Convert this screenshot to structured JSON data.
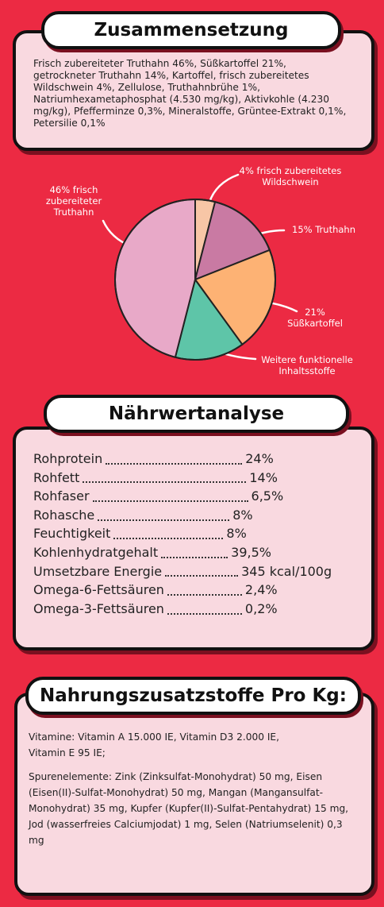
{
  "composition": {
    "title": "Zusammensetzung",
    "text": "Frisch zubereiteter Truthahn 46%, Süßkartoffel 21%, getrockneter Truthahn 14%, Kartoffel, frisch zubereitetes Wildschwein 4%, Zellulose, Truthahnbrühe 1%, Natriumhexametaphosphat (4.530 mg/kg), Aktivkohle (4.230 mg/kg), Pfefferminze 0,3%, Mineralstoffe, Grüntee-Extrakt 0,1%, Petersilie 0,1%"
  },
  "chart_data": {
    "type": "pie",
    "categories": [
      "4% frisch zubereitetes Wildschwein",
      "15% Truthahn",
      "21% Süßkartoffel",
      "Weitere funktionelle Inhaltsstoffe",
      "46% frisch zubereiteter Truthahn"
    ],
    "values": [
      4,
      15,
      21,
      14,
      46
    ],
    "colors": [
      "#f7c6a6",
      "#c97aa3",
      "#fdb274",
      "#5ec5a8",
      "#e8a9c8"
    ]
  },
  "analysis": {
    "title": "Nährwertanalyse",
    "rows": [
      [
        "Rohprotein",
        "24%"
      ],
      [
        "Rohfett",
        "14%"
      ],
      [
        "Rohfaser",
        "6,5%"
      ],
      [
        "Rohasche",
        "8%"
      ],
      [
        "Feuchtigkeit",
        "8%"
      ],
      [
        "Kohlenhydratgehalt",
        "39,5%"
      ],
      [
        "Umsetzbare Energie",
        "345 kcal/100g"
      ],
      [
        "Omega-6-Fettsäuren",
        "2,4%"
      ],
      [
        "Omega-3-Fettsäuren",
        "0,2%"
      ]
    ]
  },
  "additives": {
    "title": "Nahrungszusatzstoffe Pro Kg:",
    "vitamins": "Vitamine: Vitamin A 15.000 IE, Vitamin D3 2.000 IE, Vitamin E 95 IE;",
    "trace": "Spurenelemente: Zink (Zinksulfat-Monohydrat) 50 mg, Eisen (Eisen(II)-Sulfat-Monohydrat) 50 mg, Mangan (Mangansulfat- Monohydrat) 35 mg, Kupfer (Kupfer(II)-Sulfat-Pentahydrat) 15 mg, Jod (wasserfreies Calciumjodat) 1 mg, Selen (Natriumselenit) 0,3 mg"
  }
}
